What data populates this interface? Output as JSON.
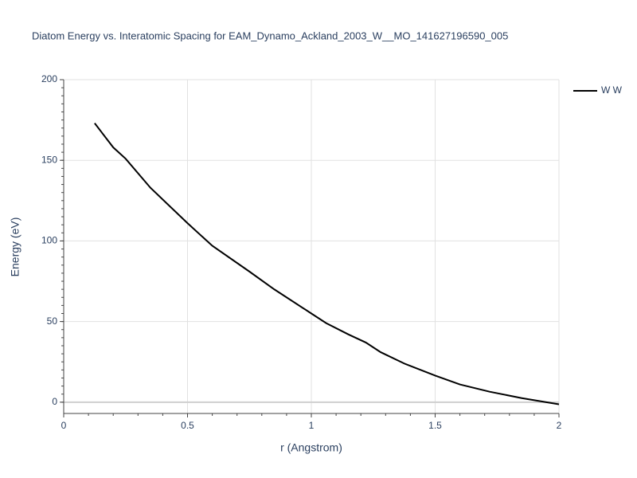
{
  "chart_data": {
    "type": "line",
    "title": "Diatom Energy vs. Interatomic Spacing for EAM_Dynamo_Ackland_2003_W__MO_141627196590_005",
    "x_label": "r (Angstrom)",
    "y_label": "Energy (eV)",
    "x": [
      0.125,
      0.2,
      0.25,
      0.35,
      0.5,
      0.6,
      0.75,
      0.85,
      1.0,
      1.06,
      1.15,
      1.22,
      1.28,
      1.375,
      1.5,
      1.6,
      1.72,
      1.85,
      2.0
    ],
    "series": [
      {
        "name": "W W",
        "color": "#000000",
        "values": [
          173,
          158,
          151,
          133,
          111,
          97,
          81,
          70,
          55,
          49,
          42,
          37,
          31,
          24,
          16.5,
          11,
          6.5,
          2.5,
          -1.3
        ]
      }
    ],
    "xlim": [
      0,
      2
    ],
    "ylim": [
      -7,
      200
    ],
    "xticks": [
      0,
      0.5,
      1,
      1.5,
      2
    ],
    "yticks": [
      0,
      50,
      100,
      150,
      200
    ],
    "grid": true,
    "legend": "right"
  }
}
